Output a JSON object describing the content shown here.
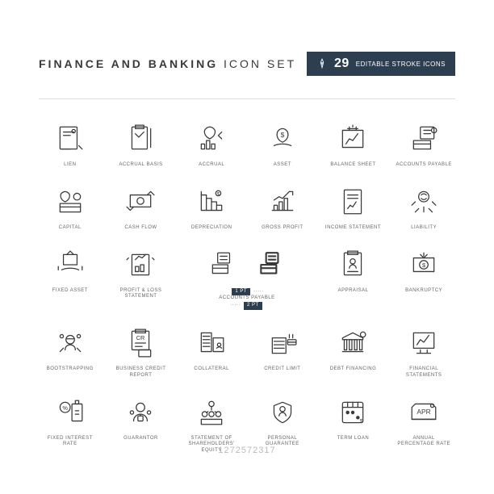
{
  "header": {
    "title_bold": "FINANCE AND BANKING",
    "title_rest": " ICON SET",
    "badge_count": "29",
    "badge_text": "EDITABLE STROKE ICONS"
  },
  "style": {
    "bg": "#ffffff",
    "icon_stroke": "#3a3a3a",
    "label_color": "#666666",
    "badge_bg": "#2c3e50",
    "divider": "#dddddd",
    "stroke_width": 1.2,
    "label_fontsize": 6
  },
  "icons": [
    {
      "label": "LIEN",
      "name": "lien-icon"
    },
    {
      "label": "ACCRUAL BASIS",
      "name": "accrual-basis-icon"
    },
    {
      "label": "ACCRUAL",
      "name": "accrual-icon"
    },
    {
      "label": "ASSET",
      "name": "asset-icon"
    },
    {
      "label": "BALANCE SHEET",
      "name": "balance-sheet-icon"
    },
    {
      "label": "ACCOUNTS PAYABLE",
      "name": "accounts-payable-icon"
    },
    {
      "label": "CAPITAL",
      "name": "capital-icon"
    },
    {
      "label": "CASH FLOW",
      "name": "cash-flow-icon"
    },
    {
      "label": "DEPRECIATION",
      "name": "depreciation-icon"
    },
    {
      "label": "GROSS PROFIT",
      "name": "gross-profit-icon"
    },
    {
      "label": "INCOME STATEMENT",
      "name": "income-statement-icon"
    },
    {
      "label": "LIABILITY",
      "name": "liability-icon"
    },
    {
      "label": "FIXED ASSET",
      "name": "fixed-asset-icon"
    },
    {
      "label": "PROFIT & LOSS STATEMENT",
      "name": "pl-statement-icon"
    },
    {
      "label": "ACCOUNTS PAYABLE",
      "name": "accounts-payable-compare-icon",
      "special": "pt"
    },
    {
      "label": "",
      "name": "accounts-payable-2-icon",
      "skip_label": true
    },
    {
      "label": "APPRAISAL",
      "name": "appraisal-icon"
    },
    {
      "label": "BANKRUPTCY",
      "name": "bankruptcy-icon"
    },
    {
      "label": "BOOTSTRAPPING",
      "name": "bootstrapping-icon"
    },
    {
      "label": "BUSINESS CREDIT REPORT",
      "name": "credit-report-icon"
    },
    {
      "label": "COLLATERAL",
      "name": "collateral-icon"
    },
    {
      "label": "CREDIT LIMIT",
      "name": "credit-limit-icon"
    },
    {
      "label": "DEBT FINANCING",
      "name": "debt-financing-icon"
    },
    {
      "label": "FINANCIAL STATEMENTS",
      "name": "financial-statements-icon"
    },
    {
      "label": "FIXED INTEREST RATE",
      "name": "fixed-interest-icon"
    },
    {
      "label": "GUARANTOR",
      "name": "guarantor-icon"
    },
    {
      "label": "STATEMENT OF SHAREHOLDERS' EQUITY",
      "name": "shareholders-icon"
    },
    {
      "label": "PERSONAL GUARANTEE",
      "name": "personal-guarantee-icon"
    },
    {
      "label": "TERM LOAN",
      "name": "term-loan-icon"
    },
    {
      "label": "ANNUAL PERCENTAGE RATE",
      "name": "apr-icon"
    }
  ],
  "pt_labels": {
    "pt1": "1 PT",
    "pt2": "2 PT",
    "arrow": "·····"
  },
  "watermark": "1272572317"
}
